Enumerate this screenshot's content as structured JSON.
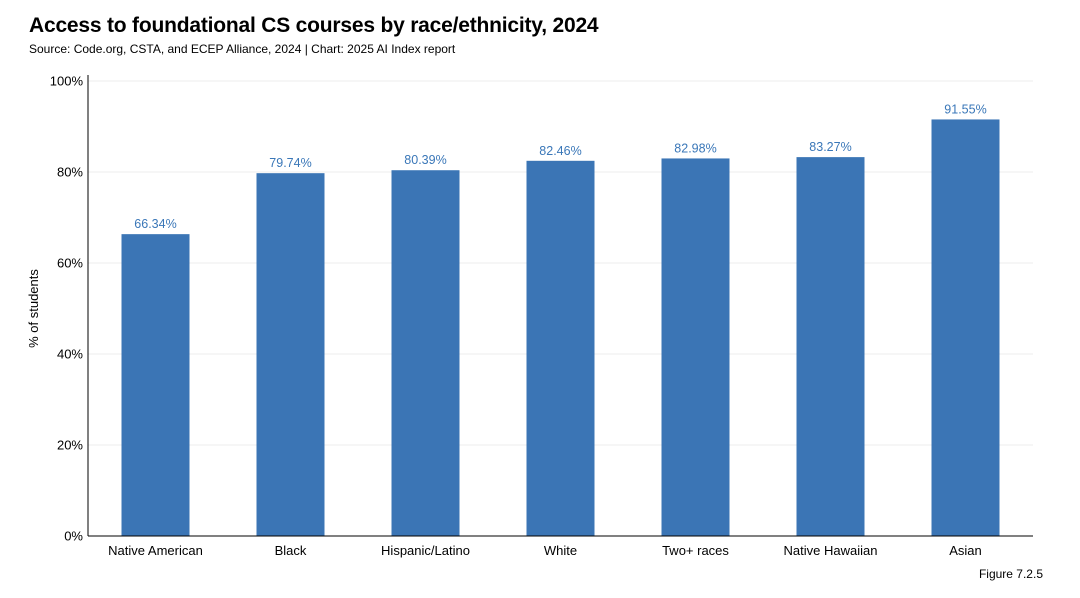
{
  "title": "Access to foundational CS courses by race/ethnicity, 2024",
  "subtitle": "Source: Code.org, CSTA, and ECEP Alliance, 2024 | Chart: 2025 AI Index report",
  "figure_label": "Figure 7.2.5",
  "colors": {
    "bar": "#3b75b5",
    "data_label": "#3a77b8",
    "grid": "#ececec",
    "axis": "#000000"
  },
  "chart_data": {
    "type": "bar",
    "title": "Access to foundational CS courses by race/ethnicity, 2024",
    "xlabel": "",
    "ylabel": "% of students",
    "ylim": [
      0,
      100
    ],
    "yticks": [
      0,
      20,
      40,
      60,
      80,
      100
    ],
    "ytick_labels": [
      "0%",
      "20%",
      "40%",
      "60%",
      "80%",
      "100%"
    ],
    "grid": true,
    "categories": [
      "Native American",
      "Black",
      "Hispanic/Latino",
      "White",
      "Two+ races",
      "Native Hawaiian",
      "Asian"
    ],
    "values": [
      66.34,
      79.74,
      80.39,
      82.46,
      82.98,
      83.27,
      91.55
    ],
    "data_labels": [
      "66.34%",
      "79.74%",
      "80.39%",
      "82.46%",
      "82.98%",
      "83.27%",
      "91.55%"
    ]
  }
}
